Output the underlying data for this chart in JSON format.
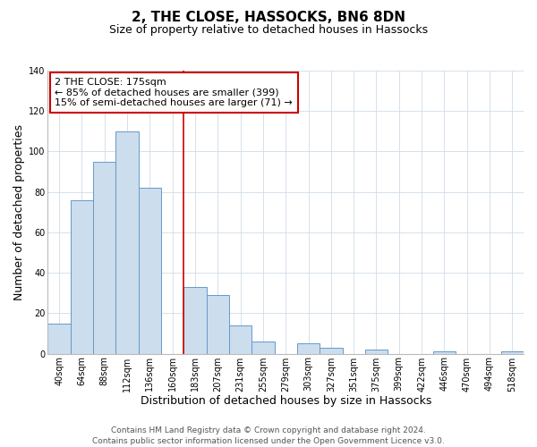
{
  "title": "2, THE CLOSE, HASSOCKS, BN6 8DN",
  "subtitle": "Size of property relative to detached houses in Hassocks",
  "xlabel": "Distribution of detached houses by size in Hassocks",
  "ylabel": "Number of detached properties",
  "bar_labels": [
    "40sqm",
    "64sqm",
    "88sqm",
    "112sqm",
    "136sqm",
    "160sqm",
    "183sqm",
    "207sqm",
    "231sqm",
    "255sqm",
    "279sqm",
    "303sqm",
    "327sqm",
    "351sqm",
    "375sqm",
    "399sqm",
    "422sqm",
    "446sqm",
    "470sqm",
    "494sqm",
    "518sqm"
  ],
  "bar_values": [
    15,
    76,
    95,
    110,
    82,
    0,
    33,
    29,
    14,
    6,
    0,
    5,
    3,
    0,
    2,
    0,
    0,
    1,
    0,
    0,
    1
  ],
  "bar_color": "#ccdded",
  "bar_edge_color": "#6699cc",
  "marker_label": "2 THE CLOSE: 175sqm",
  "annotation_line1": "← 85% of detached houses are smaller (399)",
  "annotation_line2": "15% of semi-detached houses are larger (71) →",
  "ylim": [
    0,
    140
  ],
  "yticks": [
    0,
    20,
    40,
    60,
    80,
    100,
    120,
    140
  ],
  "footer_line1": "Contains HM Land Registry data © Crown copyright and database right 2024.",
  "footer_line2": "Contains public sector information licensed under the Open Government Licence v3.0.",
  "title_fontsize": 11,
  "subtitle_fontsize": 9,
  "axis_label_fontsize": 9,
  "tick_fontsize": 7,
  "annotation_fontsize": 8,
  "footer_fontsize": 6.5,
  "red_line_color": "#cc0000",
  "annotation_box_edge_color": "#cc0000",
  "grid_color": "#d0dce8",
  "background_color": "#ffffff"
}
